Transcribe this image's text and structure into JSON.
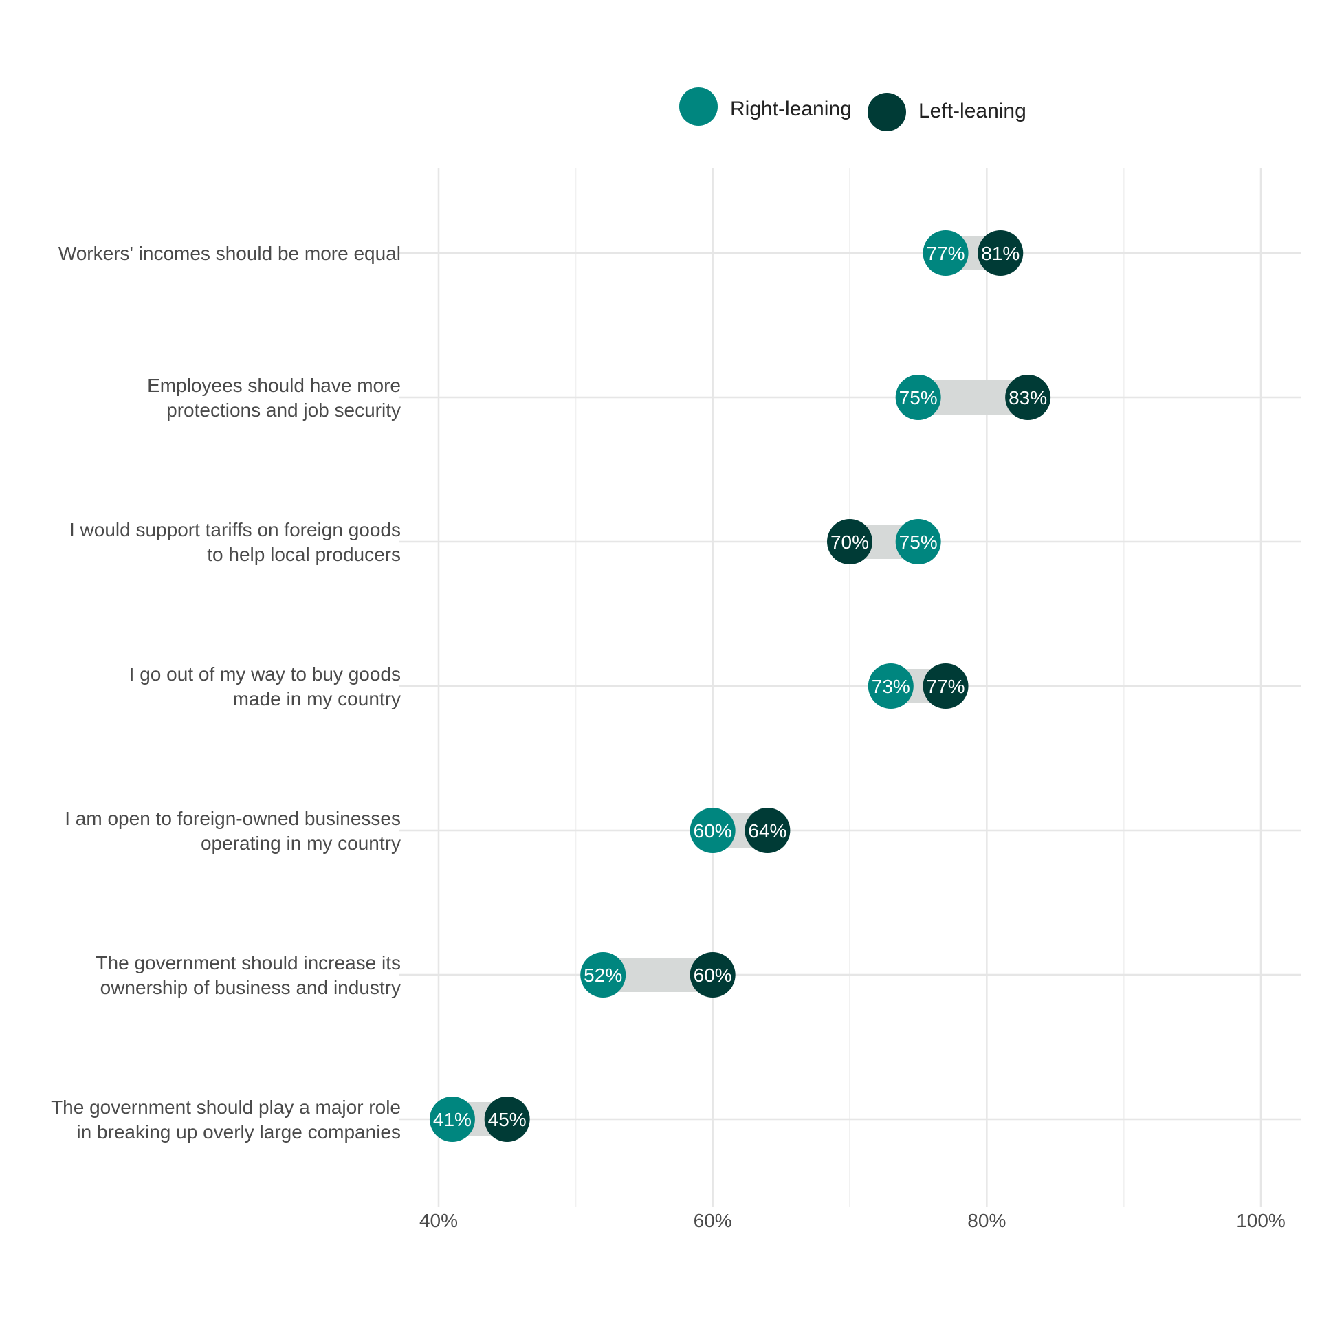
{
  "chart_data": {
    "type": "dumbbell",
    "xlim": [
      40,
      100
    ],
    "x_ticks": [
      {
        "value": 40,
        "label": "40%"
      },
      {
        "value": 60,
        "label": "60%"
      },
      {
        "value": 80,
        "label": "80%"
      },
      {
        "value": 100,
        "label": "100%"
      }
    ],
    "grid": true,
    "legend_position": "top",
    "series": [
      {
        "name": "Right-leaning",
        "color": "#00867f"
      },
      {
        "name": "Left-leaning",
        "color": "#003b36"
      }
    ],
    "connector_color": "#d6d9d8",
    "rows": [
      {
        "label": [
          "Workers' incomes should be more equal"
        ],
        "right": 77,
        "left": 81,
        "right_label": "77%",
        "left_label": "81%"
      },
      {
        "label": [
          "Employees should have more",
          "protections and job security"
        ],
        "right": 75,
        "left": 83,
        "right_label": "75%",
        "left_label": "83%"
      },
      {
        "label": [
          "I would support tariffs on foreign goods",
          "to help local producers"
        ],
        "right": 75,
        "left": 70,
        "right_label": "75%",
        "left_label": "70%"
      },
      {
        "label": [
          "I go out of my way to buy goods",
          "made in my country"
        ],
        "right": 73,
        "left": 77,
        "right_label": "73%",
        "left_label": "77%"
      },
      {
        "label": [
          "I am open to foreign-owned businesses",
          "operating in my country"
        ],
        "right": 60,
        "left": 64,
        "right_label": "60%",
        "left_label": "64%"
      },
      {
        "label": [
          "The government should increase its",
          "ownership of business and industry"
        ],
        "right": 52,
        "left": 60,
        "right_label": "52%",
        "left_label": "60%"
      },
      {
        "label": [
          "The government should play a major role",
          "in breaking up overly large companies"
        ],
        "right": 41,
        "left": 45,
        "right_label": "41%",
        "left_label": "45%"
      }
    ]
  }
}
